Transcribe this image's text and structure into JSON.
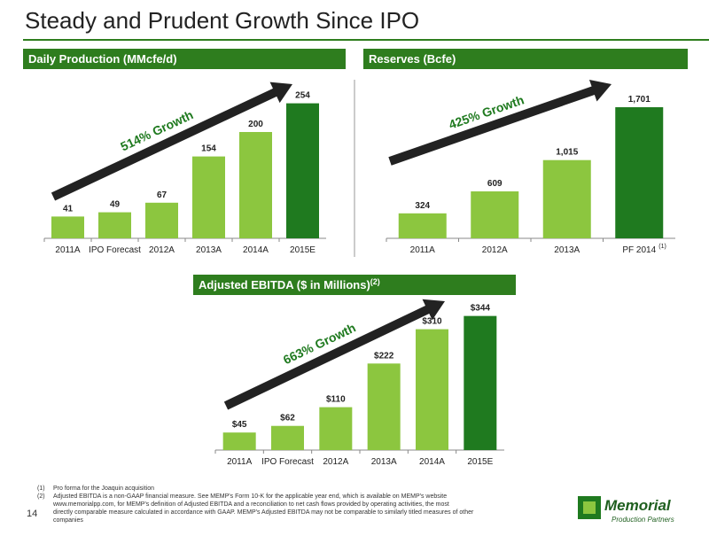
{
  "title": "Steady and Prudent Growth Since IPO",
  "page_number": "14",
  "footnotes": [
    {
      "marker": "(1)",
      "text": "Pro forma for the Joaquin acquisition"
    },
    {
      "marker": "(2)",
      "text": "Adjusted EBITDA is a non-GAAP financial measure. See MEMP's Form 10-K for the applicable year end, which is available on MEMP's website www.memorialpp.com, for MEMP's definition of Adjusted EBITDA and a reconciliation to net cash flows provided by operating activities, the most directly comparable measure calculated in accordance with GAAP.  MEMP's Adjusted EBITDA may not be comparable to similarly titled measures of other companies"
    }
  ],
  "logo": {
    "name": "Memorial",
    "tagline": "Production Partners"
  },
  "chart_data": [
    {
      "type": "bar",
      "title": "Daily Production (MMcfe/d)",
      "annotation": "514% Growth",
      "categories": [
        "2011A",
        "IPO Forecast",
        "2012A",
        "2013A",
        "2014A",
        "2015E"
      ],
      "values": [
        41,
        49,
        67,
        154,
        200,
        254
      ],
      "colors": [
        "#8cc63f",
        "#8cc63f",
        "#8cc63f",
        "#8cc63f",
        "#8cc63f",
        "#1f7a1f"
      ],
      "ylim": [
        0,
        300
      ]
    },
    {
      "type": "bar",
      "title": "Reserves (Bcfe)",
      "annotation": "425% Growth",
      "categories": [
        "2011A",
        "2012A",
        "2013A",
        "PF 2014"
      ],
      "category_footnote": "(1)",
      "values": [
        324,
        609,
        1015,
        1701
      ],
      "value_labels": [
        "324",
        "609",
        "1,015",
        "1,701"
      ],
      "colors": [
        "#8cc63f",
        "#8cc63f",
        "#8cc63f",
        "#1f7a1f"
      ],
      "ylim": [
        0,
        2000
      ]
    },
    {
      "type": "bar",
      "title": "Adjusted EBITDA ($ in Millions)",
      "title_superscript": "(2)",
      "annotation": "663% Growth",
      "categories": [
        "2011A",
        "IPO Forecast",
        "2012A",
        "2013A",
        "2014A",
        "2015E"
      ],
      "values": [
        45,
        62,
        110,
        222,
        310,
        344
      ],
      "value_labels": [
        "$45",
        "$62",
        "$110",
        "$222",
        "$310",
        "$344"
      ],
      "colors": [
        "#8cc63f",
        "#8cc63f",
        "#8cc63f",
        "#8cc63f",
        "#8cc63f",
        "#1f7a1f"
      ],
      "ylim": [
        0,
        400
      ]
    }
  ]
}
